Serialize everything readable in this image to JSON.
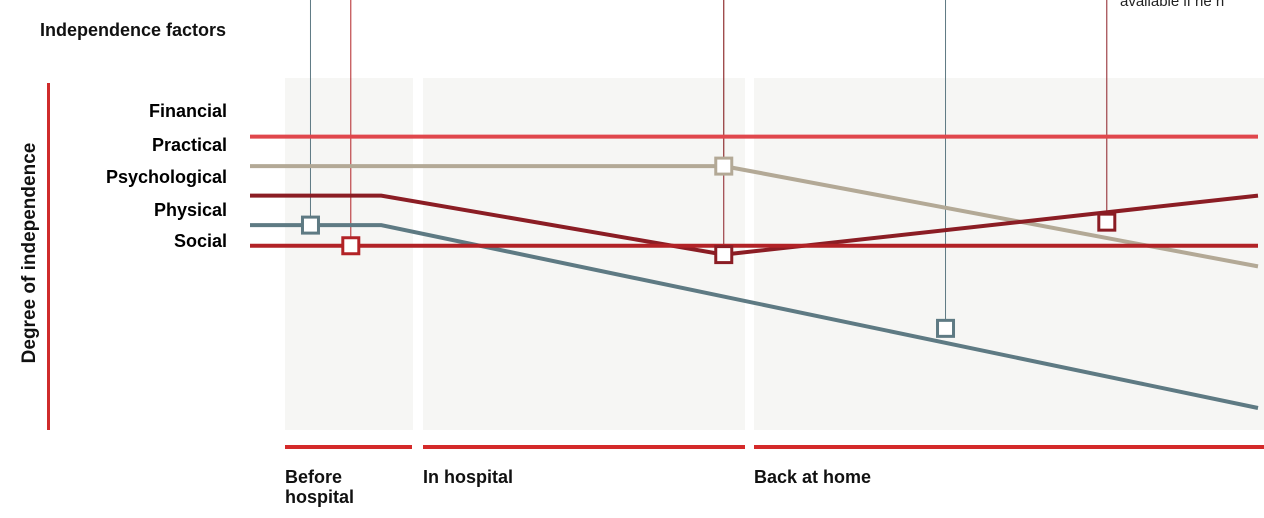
{
  "annotation_fragment": "available if he n",
  "chart_data": {
    "type": "line",
    "title": "",
    "legend_title": "Independence factors",
    "ylabel": "Degree of independence",
    "xlabel": "",
    "phases": [
      "Before hospital",
      "In hospital",
      "Back at home"
    ],
    "x_range": [
      0,
      1
    ],
    "y_range": [
      0,
      1
    ],
    "series": [
      {
        "name": "Financial",
        "color": "#e0474c",
        "points": [
          [
            0,
            0.92
          ],
          [
            1,
            0.92
          ]
        ],
        "markers": []
      },
      {
        "name": "Practical",
        "color": "#b3a996",
        "points": [
          [
            0,
            0.82
          ],
          [
            0.47,
            0.82
          ],
          [
            1,
            0.48
          ]
        ],
        "markers": [
          [
            0.47,
            0.82
          ]
        ]
      },
      {
        "name": "Psychological",
        "color": "#8b1d24",
        "points": [
          [
            0,
            0.72
          ],
          [
            0.13,
            0.72
          ],
          [
            0.47,
            0.52
          ],
          [
            1,
            0.72
          ]
        ],
        "markers": [
          [
            0.47,
            0.52
          ],
          [
            0.85,
            0.63
          ]
        ]
      },
      {
        "name": "Physical",
        "color": "#5e7a83",
        "points": [
          [
            0,
            0.62
          ],
          [
            0.13,
            0.62
          ],
          [
            1,
            0
          ]
        ],
        "markers": [
          [
            0.06,
            0.62
          ],
          [
            0.69,
            0.27
          ]
        ]
      },
      {
        "name": "Social",
        "color": "#b22226",
        "points": [
          [
            0,
            0.55
          ],
          [
            1,
            0.55
          ]
        ],
        "markers": [
          [
            0.1,
            0.55
          ]
        ]
      }
    ],
    "grid": false
  }
}
